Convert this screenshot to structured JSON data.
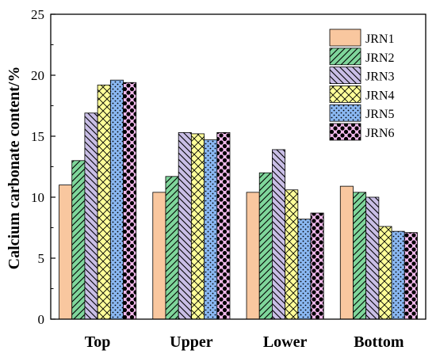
{
  "chart_data": {
    "type": "bar",
    "title": "",
    "xlabel": "",
    "ylabel": "Calcium carbonate content/%",
    "ylim": [
      0,
      25
    ],
    "yticks": [
      0,
      5,
      10,
      15,
      20,
      25
    ],
    "grid": false,
    "legend_position": "top-right",
    "categories": [
      "Top",
      "Upper",
      "Lower",
      "Bottom"
    ],
    "series": [
      {
        "name": "JRN1",
        "values": [
          11.0,
          10.4,
          10.4,
          10.9
        ],
        "color": "#F9C79F",
        "pattern": "solid"
      },
      {
        "name": "JRN2",
        "values": [
          13.0,
          11.7,
          12.0,
          10.4
        ],
        "color": "#7FD69B",
        "pattern": "diagonal-forward"
      },
      {
        "name": "JRN3",
        "values": [
          16.9,
          15.3,
          13.9,
          10.0
        ],
        "color": "#C9BEE6",
        "pattern": "diagonal-back"
      },
      {
        "name": "JRN4",
        "values": [
          19.2,
          15.2,
          10.6,
          7.6
        ],
        "color": "#FFFF99",
        "pattern": "crosshatch"
      },
      {
        "name": "JRN5",
        "values": [
          19.6,
          14.7,
          8.2,
          7.2
        ],
        "color": "#8AB8F2",
        "pattern": "dots"
      },
      {
        "name": "JRN6",
        "values": [
          19.4,
          15.3,
          8.7,
          7.1
        ],
        "color": "#F2B9EC",
        "pattern": "diamond-dots"
      }
    ]
  }
}
